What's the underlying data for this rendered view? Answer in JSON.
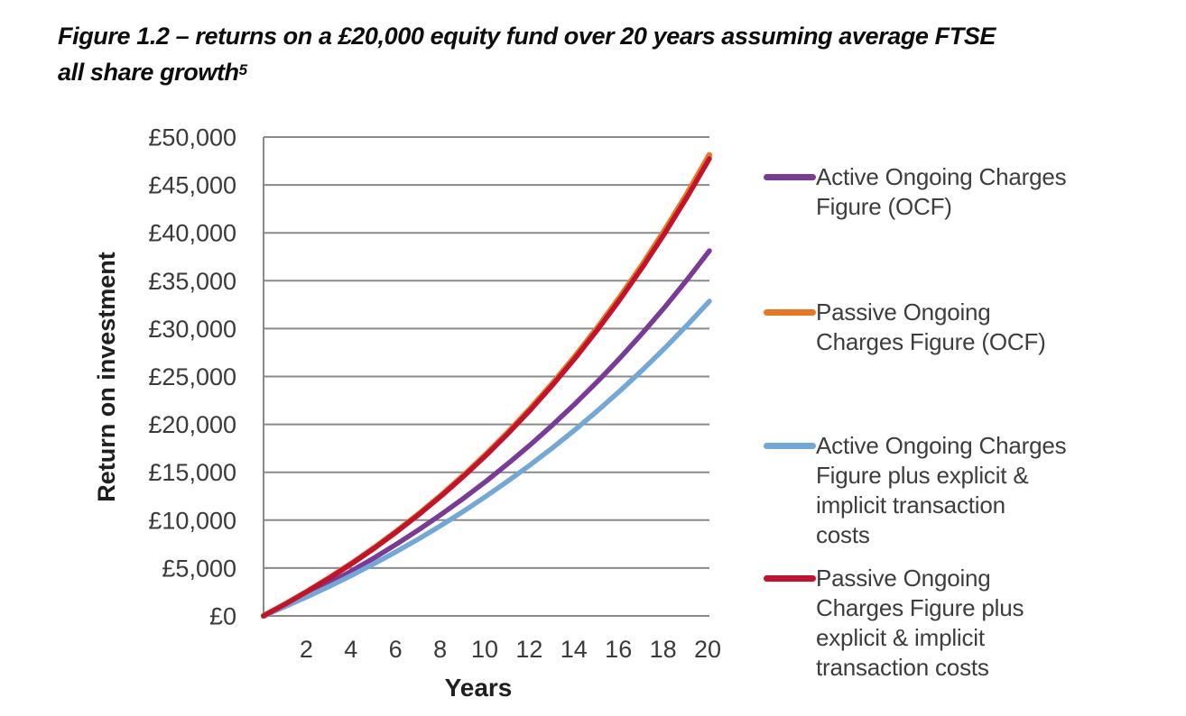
{
  "figure": {
    "title_line1": "Figure 1.2 – returns on a £20,000 equity fund over 20 years assuming average FTSE",
    "title_line2": "all share growth",
    "title_footnote_marker": "5"
  },
  "chart_data": {
    "type": "line",
    "title": "Figure 1.2 – returns on a £20,000 equity fund over 20 years assuming average FTSE all share growth",
    "xlabel": "Years",
    "ylabel": "Return on investment",
    "xlim": [
      0,
      20
    ],
    "ylim": [
      0,
      50000
    ],
    "grid": "horizontal-only",
    "legend_position": "right",
    "currency": "GBP",
    "x": [
      0,
      1,
      2,
      3,
      4,
      5,
      6,
      7,
      8,
      9,
      10,
      11,
      12,
      13,
      14,
      15,
      16,
      17,
      18,
      19,
      20
    ],
    "x_tick_values": [
      2,
      4,
      6,
      8,
      10,
      12,
      14,
      16,
      18,
      20
    ],
    "x_tick_labels": [
      "2",
      "4",
      "6",
      "8",
      "10",
      "12",
      "14",
      "16",
      "18",
      "20"
    ],
    "y_tick_values": [
      0,
      5000,
      10000,
      15000,
      20000,
      25000,
      30000,
      35000,
      40000,
      45000,
      50000
    ],
    "y_tick_labels": [
      "£0",
      "£5,000",
      "£10,000",
      "£15,000",
      "£20,000",
      "£25,000",
      "£30,000",
      "£35,000",
      "£40,000",
      "£45,000",
      "£50,000"
    ],
    "series": [
      {
        "name": "Active Ongoing Charges Figure (OCF)",
        "legend_lines": [
          "Active Ongoing Charges",
          "Figure (OCF)"
        ],
        "color": "#7A3B96",
        "end_value_estimate": 38100,
        "values": [
          0,
          1100,
          2250,
          3470,
          4760,
          6110,
          7550,
          9060,
          10650,
          12330,
          14100,
          15970,
          17940,
          20020,
          22210,
          24520,
          26960,
          29540,
          32250,
          35110,
          38130
        ]
      },
      {
        "name": "Passive Ongoing Charges Figure (OCF)",
        "legend_lines": [
          "Passive Ongoing",
          "Charges Figure (OCF)"
        ],
        "color": "#E87722",
        "end_value_estimate": 48100,
        "values": [
          0,
          1260,
          2610,
          4040,
          5560,
          7170,
          8890,
          10710,
          12660,
          14720,
          16910,
          19250,
          21730,
          24360,
          27170,
          30150,
          33320,
          36690,
          40270,
          44080,
          48130
        ]
      },
      {
        "name": "Active Ongoing Charges Figure plus explicit & implicit transaction costs",
        "legend_lines": [
          "Active Ongoing Charges",
          "Figure plus explicit &",
          "implicit transaction",
          "costs"
        ],
        "color": "#71A8D7",
        "end_value_estimate": 32900,
        "values": [
          0,
          1000,
          2040,
          3140,
          4290,
          5500,
          6770,
          8100,
          9500,
          10970,
          12520,
          14140,
          15840,
          17620,
          19490,
          21460,
          23520,
          25690,
          27970,
          30360,
          32860
        ]
      },
      {
        "name": "Passive Ongoing Charges Figure plus explicit & implicit transaction costs",
        "legend_lines": [
          "Passive Ongoing",
          "Charges Figure plus",
          "explicit & implicit",
          "transaction costs"
        ],
        "color": "#C3122B",
        "end_value_estimate": 47700,
        "values": [
          0,
          1260,
          2600,
          4020,
          5530,
          7130,
          8840,
          10650,
          12580,
          14630,
          16810,
          19120,
          21580,
          24200,
          26980,
          29940,
          33080,
          36420,
          39960,
          43740,
          47740
        ]
      }
    ]
  },
  "colors": {
    "grid": "#8a8a8a",
    "axis": "#8a8a8a",
    "tick_text": "#3a3a3a",
    "axis_title_text": "#1f1f1f",
    "legend_text": "#3d3d3d",
    "title_text": "#0d0d0d",
    "background": "#ffffff"
  }
}
